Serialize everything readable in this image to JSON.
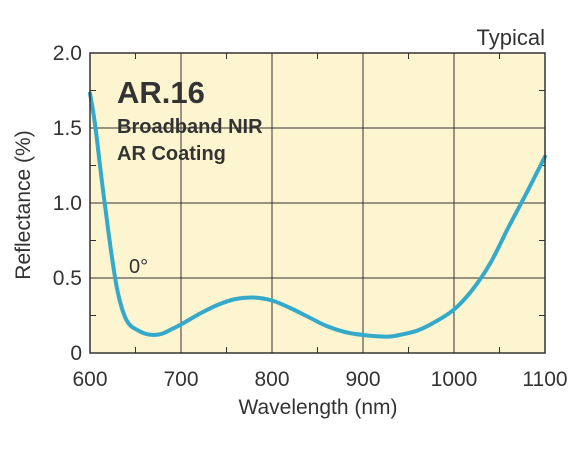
{
  "chart_data": {
    "type": "line",
    "corner_label": "Typical",
    "annotation_title": "AR.16",
    "annotation_lines": [
      "Broadband NIR",
      "AR Coating"
    ],
    "curve_label": "0°",
    "xlabel": "Wavelength (nm)",
    "ylabel": "Reflectance (%)",
    "xlim": [
      600,
      1100
    ],
    "ylim": [
      0,
      2.0
    ],
    "x_ticks": [
      {
        "value": 600,
        "label": "600"
      },
      {
        "value": 700,
        "label": "700"
      },
      {
        "value": 800,
        "label": "800"
      },
      {
        "value": 900,
        "label": "900"
      },
      {
        "value": 1000,
        "label": "1000"
      },
      {
        "value": 1100,
        "label": "1100"
      }
    ],
    "y_ticks": [
      {
        "value": 0,
        "label": "0"
      },
      {
        "value": 0.5,
        "label": "0.5"
      },
      {
        "value": 1.0,
        "label": "1.0"
      },
      {
        "value": 1.5,
        "label": "1.5"
      },
      {
        "value": 2.0,
        "label": "2.0"
      }
    ],
    "grid": true,
    "colors": {
      "background": "#fdf5cf",
      "line": "#35a9c9",
      "grid": "#333333",
      "text": "#333333"
    },
    "series": [
      {
        "x": [
          600,
          605,
          610,
          615,
          620,
          625,
          630,
          635,
          640,
          645,
          650,
          660,
          670,
          680,
          690,
          700,
          720,
          740,
          760,
          780,
          800,
          820,
          840,
          860,
          880,
          900,
          920,
          930,
          940,
          960,
          980,
          1000,
          1020,
          1040,
          1060,
          1080,
          1100
        ],
        "y": [
          1.73,
          1.55,
          1.3,
          1.05,
          0.82,
          0.6,
          0.42,
          0.3,
          0.22,
          0.18,
          0.16,
          0.13,
          0.12,
          0.13,
          0.16,
          0.19,
          0.26,
          0.32,
          0.36,
          0.37,
          0.35,
          0.3,
          0.24,
          0.18,
          0.14,
          0.12,
          0.11,
          0.11,
          0.12,
          0.15,
          0.21,
          0.29,
          0.42,
          0.6,
          0.84,
          1.07,
          1.31
        ]
      }
    ]
  }
}
